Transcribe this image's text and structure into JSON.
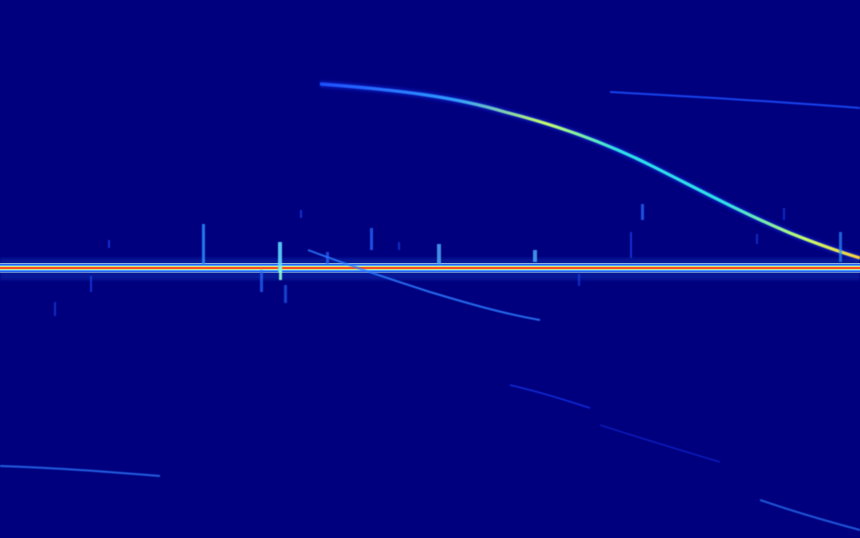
{
  "image": {
    "kind": "spectrogram",
    "colormap": "jet",
    "colors": {
      "background": "#00007f",
      "carrier_core": "#ff2a1a",
      "carrier_mid": "#ffe83a",
      "carrier_outer": "#2a6bff",
      "trace_hot": "#c8ff6a",
      "trace_mid": "#2fe2e8",
      "trace_faint": "#1f4fff"
    },
    "features": [
      "horizontal-carrier-line",
      "descending-doppler-trace",
      "faint-upper-right-trace",
      "faint-lower-diagonal-traces",
      "short-vertical-bursts"
    ]
  }
}
